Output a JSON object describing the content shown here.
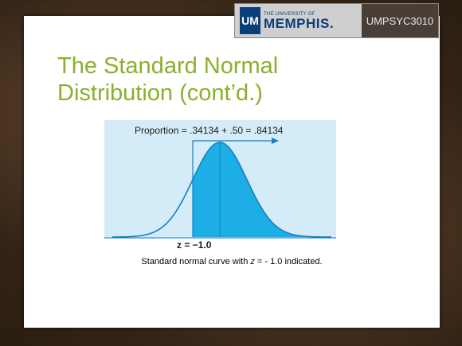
{
  "header": {
    "logo_letters": "UM",
    "logo_small": "THE UNIVERSITY OF",
    "logo_big": "MEMPHIS.",
    "course_code": "UMPSYC3010"
  },
  "slide": {
    "title_line1": "The Standard Normal",
    "title_line2": "Distribution (cont’d.)"
  },
  "figure": {
    "proportion_text": "Proportion = .34134 + .50 = .84134",
    "z_label": "z = −1.0",
    "colors": {
      "background": "#d4ecf8",
      "shade": "#1eaee6",
      "curve": "#1480c4",
      "text": "#1a1a1a"
    }
  },
  "caption": {
    "prefix": "Standard normal curve with ",
    "var": "z",
    "suffix": " = - 1.0 indicated."
  }
}
